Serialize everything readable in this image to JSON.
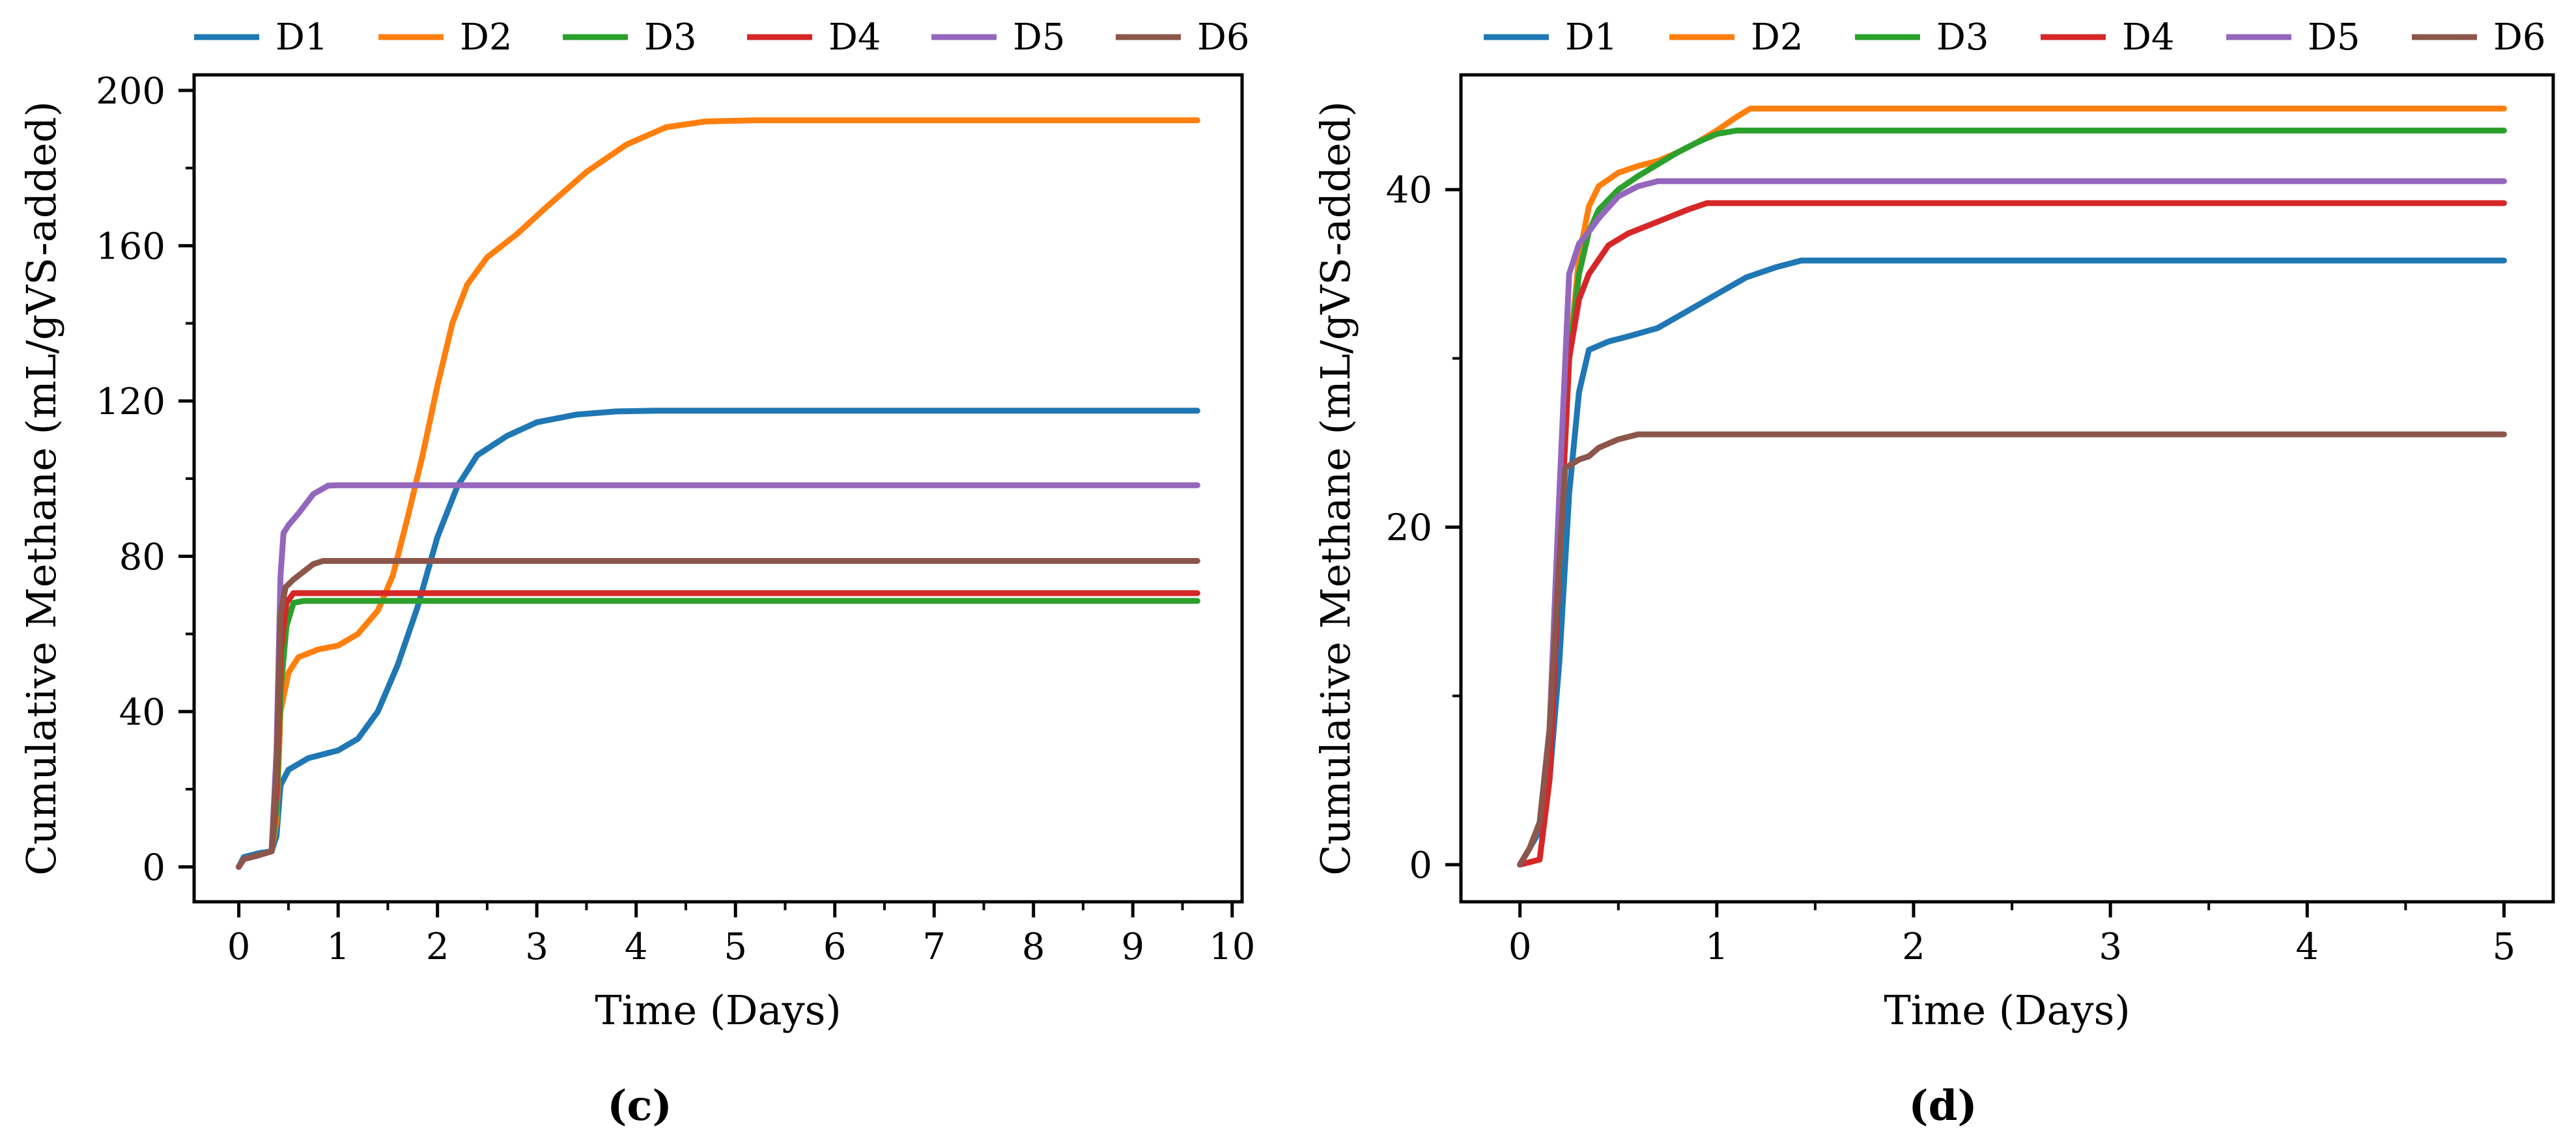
{
  "chart_data": [
    {
      "type": "line",
      "panel_label": "(c)",
      "xlabel": "Time (Days)",
      "ylabel": "Cumulative Methane (mL/gVS-added)",
      "xlim": [
        -0.45,
        10.1
      ],
      "ylim": [
        -9,
        204
      ],
      "xticks": [
        0,
        1,
        2,
        3,
        4,
        5,
        6,
        7,
        8,
        9,
        10
      ],
      "yticks": [
        0,
        40,
        80,
        120,
        160,
        200
      ],
      "x_minor": 0.5,
      "y_minor": 20,
      "legend": [
        "D1",
        "D2",
        "D3",
        "D4",
        "D5",
        "D6"
      ],
      "series": [
        {
          "name": "D1",
          "color": "#1f77b4",
          "x": [
            0,
            0.05,
            0.2,
            0.33,
            0.38,
            0.42,
            0.5,
            0.7,
            1.0,
            1.2,
            1.4,
            1.6,
            1.8,
            2.0,
            2.2,
            2.4,
            2.7,
            3.0,
            3.4,
            3.8,
            4.2,
            5,
            6,
            8,
            9.65
          ],
          "y": [
            0,
            2.5,
            3.5,
            4,
            8,
            21,
            25,
            28,
            30,
            33,
            40,
            52,
            67,
            85,
            98,
            106,
            111,
            114.5,
            116.5,
            117.3,
            117.5,
            117.5,
            117.5,
            117.5,
            117.5
          ]
        },
        {
          "name": "D2",
          "color": "#ff7f0e",
          "x": [
            0,
            0.05,
            0.2,
            0.33,
            0.38,
            0.42,
            0.5,
            0.6,
            0.8,
            1.0,
            1.2,
            1.4,
            1.55,
            1.7,
            1.85,
            2.0,
            2.15,
            2.3,
            2.5,
            2.8,
            3.1,
            3.5,
            3.9,
            4.3,
            4.7,
            5.2,
            6,
            8,
            9.65
          ],
          "y": [
            0,
            2,
            3,
            4,
            12,
            40,
            50,
            54,
            56,
            57,
            60,
            66,
            75,
            90,
            106,
            124,
            140,
            150,
            157,
            163,
            170,
            179,
            186,
            190.5,
            192,
            192.3,
            192.3,
            192.3,
            192.3
          ]
        },
        {
          "name": "D3",
          "color": "#2ca02c",
          "x": [
            0,
            0.05,
            0.2,
            0.33,
            0.38,
            0.42,
            0.48,
            0.55,
            0.65,
            1,
            3,
            6,
            9.65
          ],
          "y": [
            0,
            2,
            3,
            4,
            15,
            45,
            62,
            68,
            68.5,
            68.5,
            68.5,
            68.5,
            68.5
          ]
        },
        {
          "name": "D4",
          "color": "#d62728",
          "x": [
            0,
            0.05,
            0.2,
            0.33,
            0.38,
            0.42,
            0.48,
            0.55,
            0.65,
            1,
            3,
            6,
            9.65
          ],
          "y": [
            0,
            2,
            3,
            4,
            20,
            55,
            68,
            70.5,
            70.5,
            70.5,
            70.5,
            70.5,
            70.5
          ]
        },
        {
          "name": "D5",
          "color": "#9467bd",
          "x": [
            0,
            0.05,
            0.2,
            0.33,
            0.38,
            0.42,
            0.45,
            0.5,
            0.6,
            0.75,
            0.9,
            1.0,
            1.5,
            3,
            6,
            9.65
          ],
          "y": [
            0,
            2,
            3,
            4,
            30,
            75,
            86,
            88,
            91,
            96,
            98.2,
            98.3,
            98.3,
            98.3,
            98.3,
            98.3
          ]
        },
        {
          "name": "D6",
          "color": "#8c564b",
          "x": [
            0,
            0.05,
            0.2,
            0.33,
            0.38,
            0.42,
            0.47,
            0.55,
            0.65,
            0.75,
            0.85,
            1.0,
            1.5,
            3,
            6,
            9.65
          ],
          "y": [
            0,
            2,
            3,
            4,
            25,
            65,
            72,
            74,
            76,
            78,
            78.8,
            78.8,
            78.8,
            78.8,
            78.8,
            78.8
          ]
        }
      ]
    },
    {
      "type": "line",
      "panel_label": "(d)",
      "xlabel": "Time (Days)",
      "ylabel": "Cumulative Methane (mL/gVS-added)",
      "xlim": [
        -0.3,
        5.25
      ],
      "ylim": [
        -2.2,
        46.8
      ],
      "xticks": [
        0,
        1,
        2,
        3,
        4,
        5
      ],
      "yticks": [
        0,
        20,
        40
      ],
      "x_minor": 0.5,
      "y_minor": 10,
      "legend": [
        "D1",
        "D2",
        "D3",
        "D4",
        "D5",
        "D6"
      ],
      "series": [
        {
          "name": "D1",
          "color": "#1f77b4",
          "x": [
            0,
            0.05,
            0.1,
            0.15,
            0.2,
            0.25,
            0.3,
            0.35,
            0.45,
            0.55,
            0.7,
            0.85,
            1.0,
            1.15,
            1.3,
            1.43,
            2,
            3,
            4,
            5
          ],
          "y": [
            0,
            1,
            2,
            5,
            12,
            22,
            28,
            30.5,
            31,
            31.3,
            31.8,
            32.8,
            33.8,
            34.8,
            35.4,
            35.8,
            35.8,
            35.8,
            35.8,
            35.8
          ]
        },
        {
          "name": "D2",
          "color": "#ff7f0e",
          "x": [
            0,
            0.05,
            0.1,
            0.15,
            0.2,
            0.25,
            0.3,
            0.35,
            0.4,
            0.5,
            0.6,
            0.7,
            0.8,
            0.9,
            1.0,
            1.1,
            1.17,
            1.5,
            2,
            3,
            4,
            5
          ],
          "y": [
            0,
            1,
            2.5,
            7,
            18,
            30,
            36,
            39,
            40.2,
            41,
            41.4,
            41.7,
            42.2,
            42.8,
            43.5,
            44.3,
            44.8,
            44.8,
            44.8,
            44.8,
            44.8,
            44.8
          ]
        },
        {
          "name": "D3",
          "color": "#2ca02c",
          "x": [
            0,
            0.05,
            0.1,
            0.15,
            0.2,
            0.25,
            0.3,
            0.35,
            0.4,
            0.5,
            0.6,
            0.7,
            0.8,
            0.9,
            1.0,
            1.1,
            1.5,
            2,
            3,
            4,
            5
          ],
          "y": [
            0,
            1,
            2.5,
            7,
            18,
            30,
            35,
            37.5,
            38.8,
            40,
            40.8,
            41.5,
            42.2,
            42.8,
            43.3,
            43.5,
            43.5,
            43.5,
            43.5,
            43.5,
            43.5
          ]
        },
        {
          "name": "D4",
          "color": "#d62728",
          "x": [
            0,
            0.1,
            0.15,
            0.2,
            0.25,
            0.3,
            0.35,
            0.45,
            0.55,
            0.7,
            0.85,
            0.95,
            1.5,
            2,
            3,
            4,
            5
          ],
          "y": [
            0,
            0.3,
            5,
            18,
            30,
            33.5,
            35,
            36.7,
            37.4,
            38.1,
            38.8,
            39.2,
            39.2,
            39.2,
            39.2,
            39.2,
            39.2
          ]
        },
        {
          "name": "D5",
          "color": "#9467bd",
          "x": [
            0,
            0.05,
            0.1,
            0.15,
            0.2,
            0.25,
            0.3,
            0.35,
            0.4,
            0.5,
            0.6,
            0.7,
            0.8,
            1.0,
            2,
            3,
            4,
            5
          ],
          "y": [
            0,
            1,
            2.5,
            8,
            22,
            35,
            36.8,
            37.5,
            38.3,
            39.6,
            40.2,
            40.5,
            40.5,
            40.5,
            40.5,
            40.5,
            40.5,
            40.5
          ]
        },
        {
          "name": "D6",
          "color": "#8c564b",
          "x": [
            0,
            0.05,
            0.1,
            0.15,
            0.2,
            0.23,
            0.3,
            0.35,
            0.4,
            0.5,
            0.6,
            0.7,
            1.0,
            2,
            3,
            4,
            5
          ],
          "y": [
            0,
            1,
            2.5,
            8,
            18,
            23.5,
            24,
            24.2,
            24.7,
            25.2,
            25.5,
            25.5,
            25.5,
            25.5,
            25.5,
            25.5,
            25.5
          ]
        }
      ]
    }
  ]
}
